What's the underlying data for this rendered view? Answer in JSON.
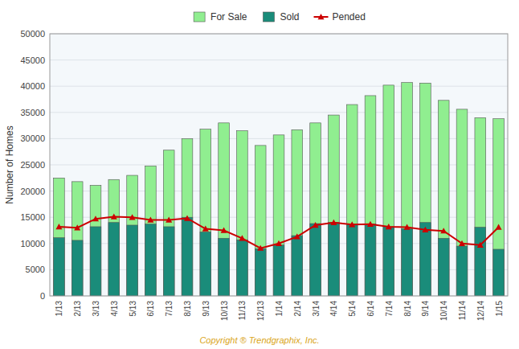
{
  "chart_data": {
    "type": "bar",
    "categories": [
      "1/13",
      "2/13",
      "3/13",
      "4/13",
      "5/13",
      "6/13",
      "7/13",
      "8/13",
      "9/13",
      "10/13",
      "11/13",
      "12/13",
      "1/14",
      "2/14",
      "3/14",
      "4/14",
      "5/14",
      "6/14",
      "7/14",
      "8/14",
      "9/14",
      "10/14",
      "11/14",
      "12/14",
      "1/15"
    ],
    "series": [
      {
        "name": "For Sale",
        "type": "bar",
        "color": "#90EE90",
        "values": [
          22500,
          21800,
          21100,
          22200,
          23000,
          24800,
          27800,
          30000,
          31800,
          33000,
          31500,
          28700,
          30700,
          31700,
          33000,
          34500,
          36500,
          38200,
          40200,
          40700,
          40600,
          37300,
          35600,
          34000,
          33800
        ]
      },
      {
        "name": "Sold",
        "type": "bar",
        "color": "#1A8C7A",
        "values": [
          11100,
          10600,
          13200,
          14000,
          13500,
          13700,
          13200,
          15000,
          12200,
          11000,
          10700,
          9000,
          9700,
          11500,
          13800,
          14000,
          13700,
          13700,
          13200,
          12800,
          14000,
          11000,
          9500,
          13100,
          8900
        ]
      },
      {
        "name": "Pended",
        "type": "line",
        "color": "#CC0000",
        "marker": "triangle",
        "values": [
          13200,
          13000,
          14700,
          15100,
          15000,
          14500,
          14500,
          14800,
          12800,
          12500,
          11000,
          9100,
          10000,
          11300,
          13500,
          14000,
          13600,
          13700,
          13200,
          13100,
          12600,
          12400,
          10000,
          9700,
          13100
        ]
      }
    ],
    "stacked": false,
    "ylabel": "Number of Homes",
    "ylim": [
      0,
      50000
    ],
    "yticks": [
      0,
      5000,
      10000,
      15000,
      20000,
      25000,
      30000,
      35000,
      40000,
      45000,
      50000
    ],
    "grid": true,
    "legend": "top",
    "annotations": [
      {
        "text": "Copyright ® Trendgraphix, Inc.",
        "color": "#DAA520"
      }
    ]
  }
}
